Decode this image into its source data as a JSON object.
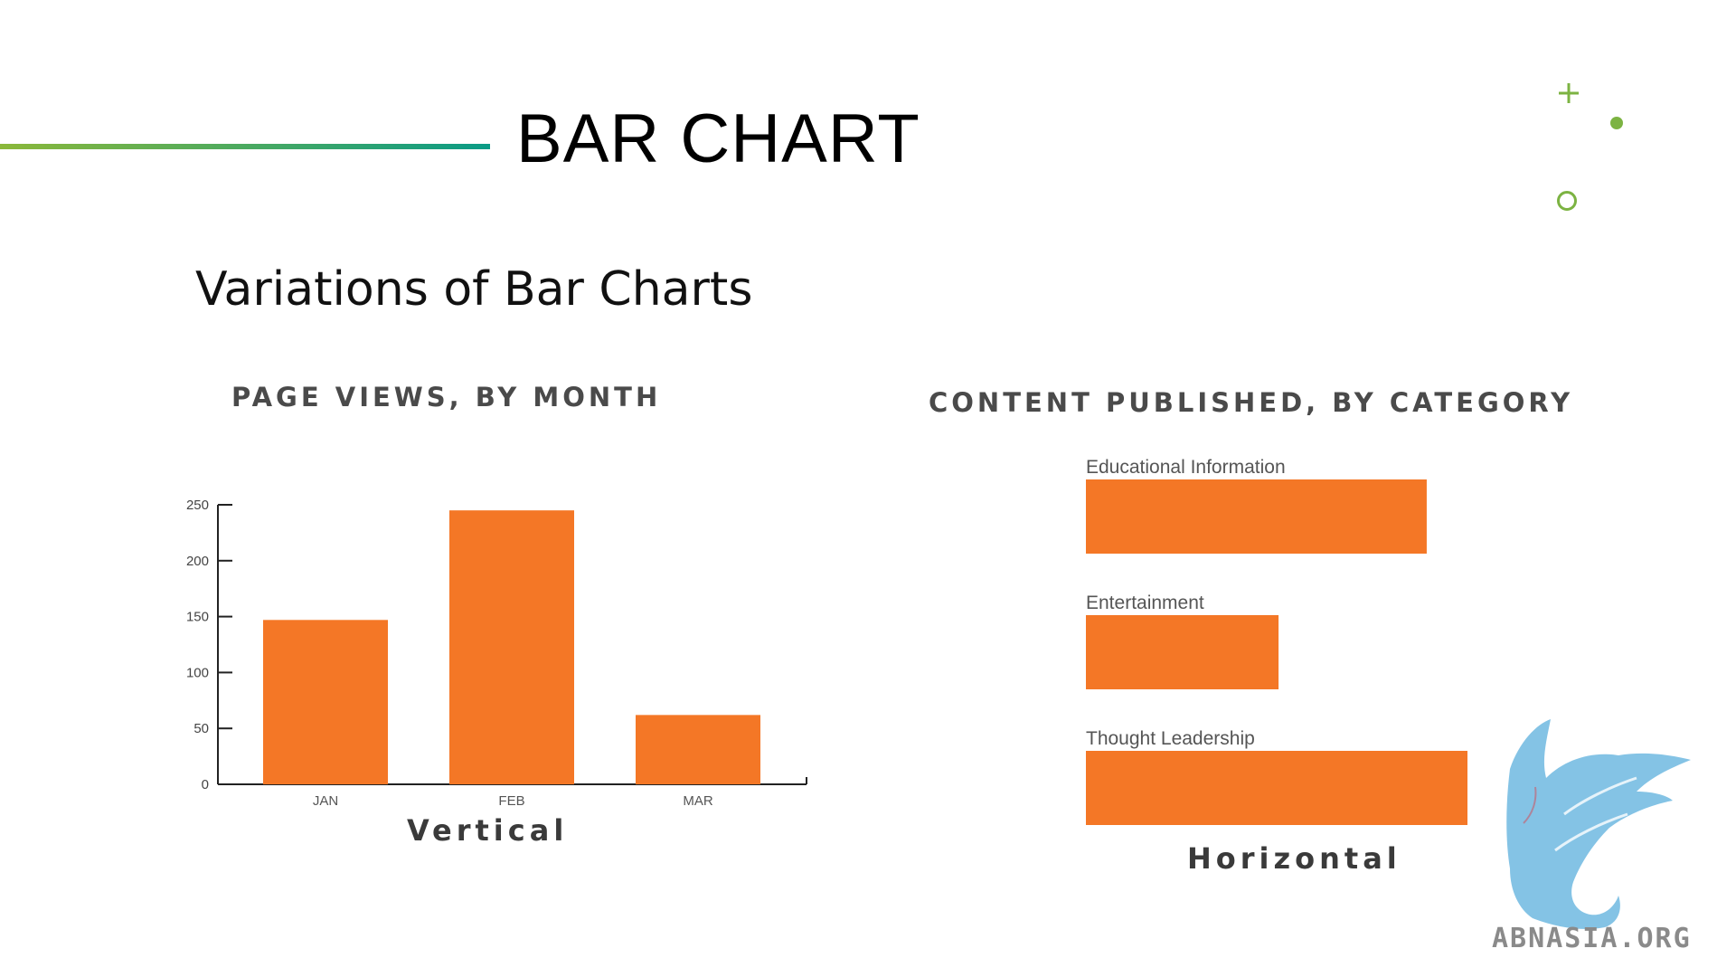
{
  "slide": {
    "title": "BAR CHART",
    "subtitle": "Variations of Bar Charts",
    "accent_colors": {
      "line_start": "#8bb83a",
      "line_end": "#0a9b86",
      "deco": "#7cb342"
    }
  },
  "vertical_caption": "Vertical",
  "horizontal_caption": "Horizontal",
  "logo": {
    "text": "ABNASIA.ORG",
    "icon": "griffin-logo-icon"
  },
  "chart_data": [
    {
      "type": "bar",
      "orientation": "vertical",
      "title": "PAGE VIEWS, BY MONTH",
      "categories": [
        "JAN",
        "FEB",
        "MAR"
      ],
      "values": [
        147,
        245,
        62
      ],
      "ylim": [
        0,
        250
      ],
      "yticks": [
        0,
        50,
        100,
        150,
        200,
        250
      ],
      "color": "#f47726",
      "grid": false
    },
    {
      "type": "bar",
      "orientation": "horizontal",
      "title": "CONTENT PUBLISHED, BY CATEGORY",
      "categories": [
        "Educational Information",
        "Entertainment",
        "Thought Leadership"
      ],
      "values": [
        92,
        52,
        103
      ],
      "xlim": [
        0,
        103
      ],
      "color": "#f47726",
      "grid": false
    }
  ]
}
